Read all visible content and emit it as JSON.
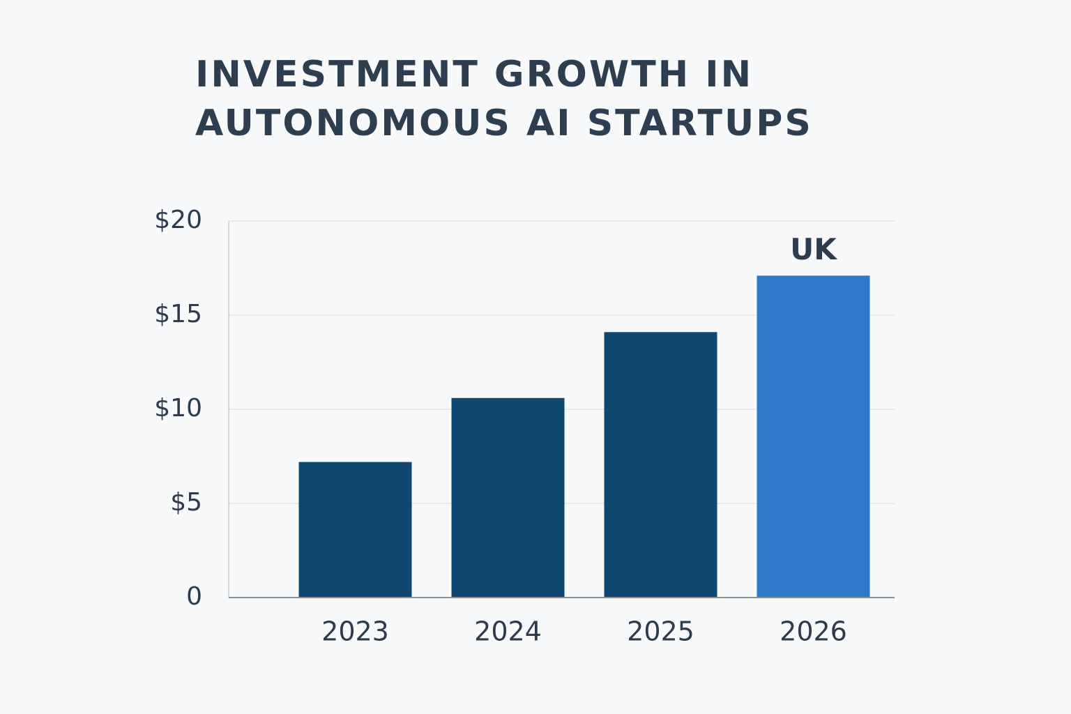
{
  "chart_data": {
    "type": "bar",
    "title": [
      "INVESTMENT GROWTH IN",
      "AUTONOMOUS AI STARTUPS"
    ],
    "categories": [
      "2023",
      "2024",
      "2025",
      "2026"
    ],
    "values": [
      7.2,
      10.6,
      14.1,
      17.1
    ],
    "colors": [
      "#0f4770",
      "#0f4770",
      "#0f4770",
      "#2e78c7"
    ],
    "annotations": [
      {
        "text": "UK",
        "x": "2026"
      }
    ],
    "ylim": [
      0,
      20
    ],
    "yticks": [
      0,
      {
        "value": 5,
        "label": "$5"
      },
      {
        "value": 10,
        "label": "$10"
      },
      {
        "value": 15,
        "label": "$15"
      },
      {
        "value": 20,
        "label": "$20"
      }
    ],
    "grid": true
  }
}
